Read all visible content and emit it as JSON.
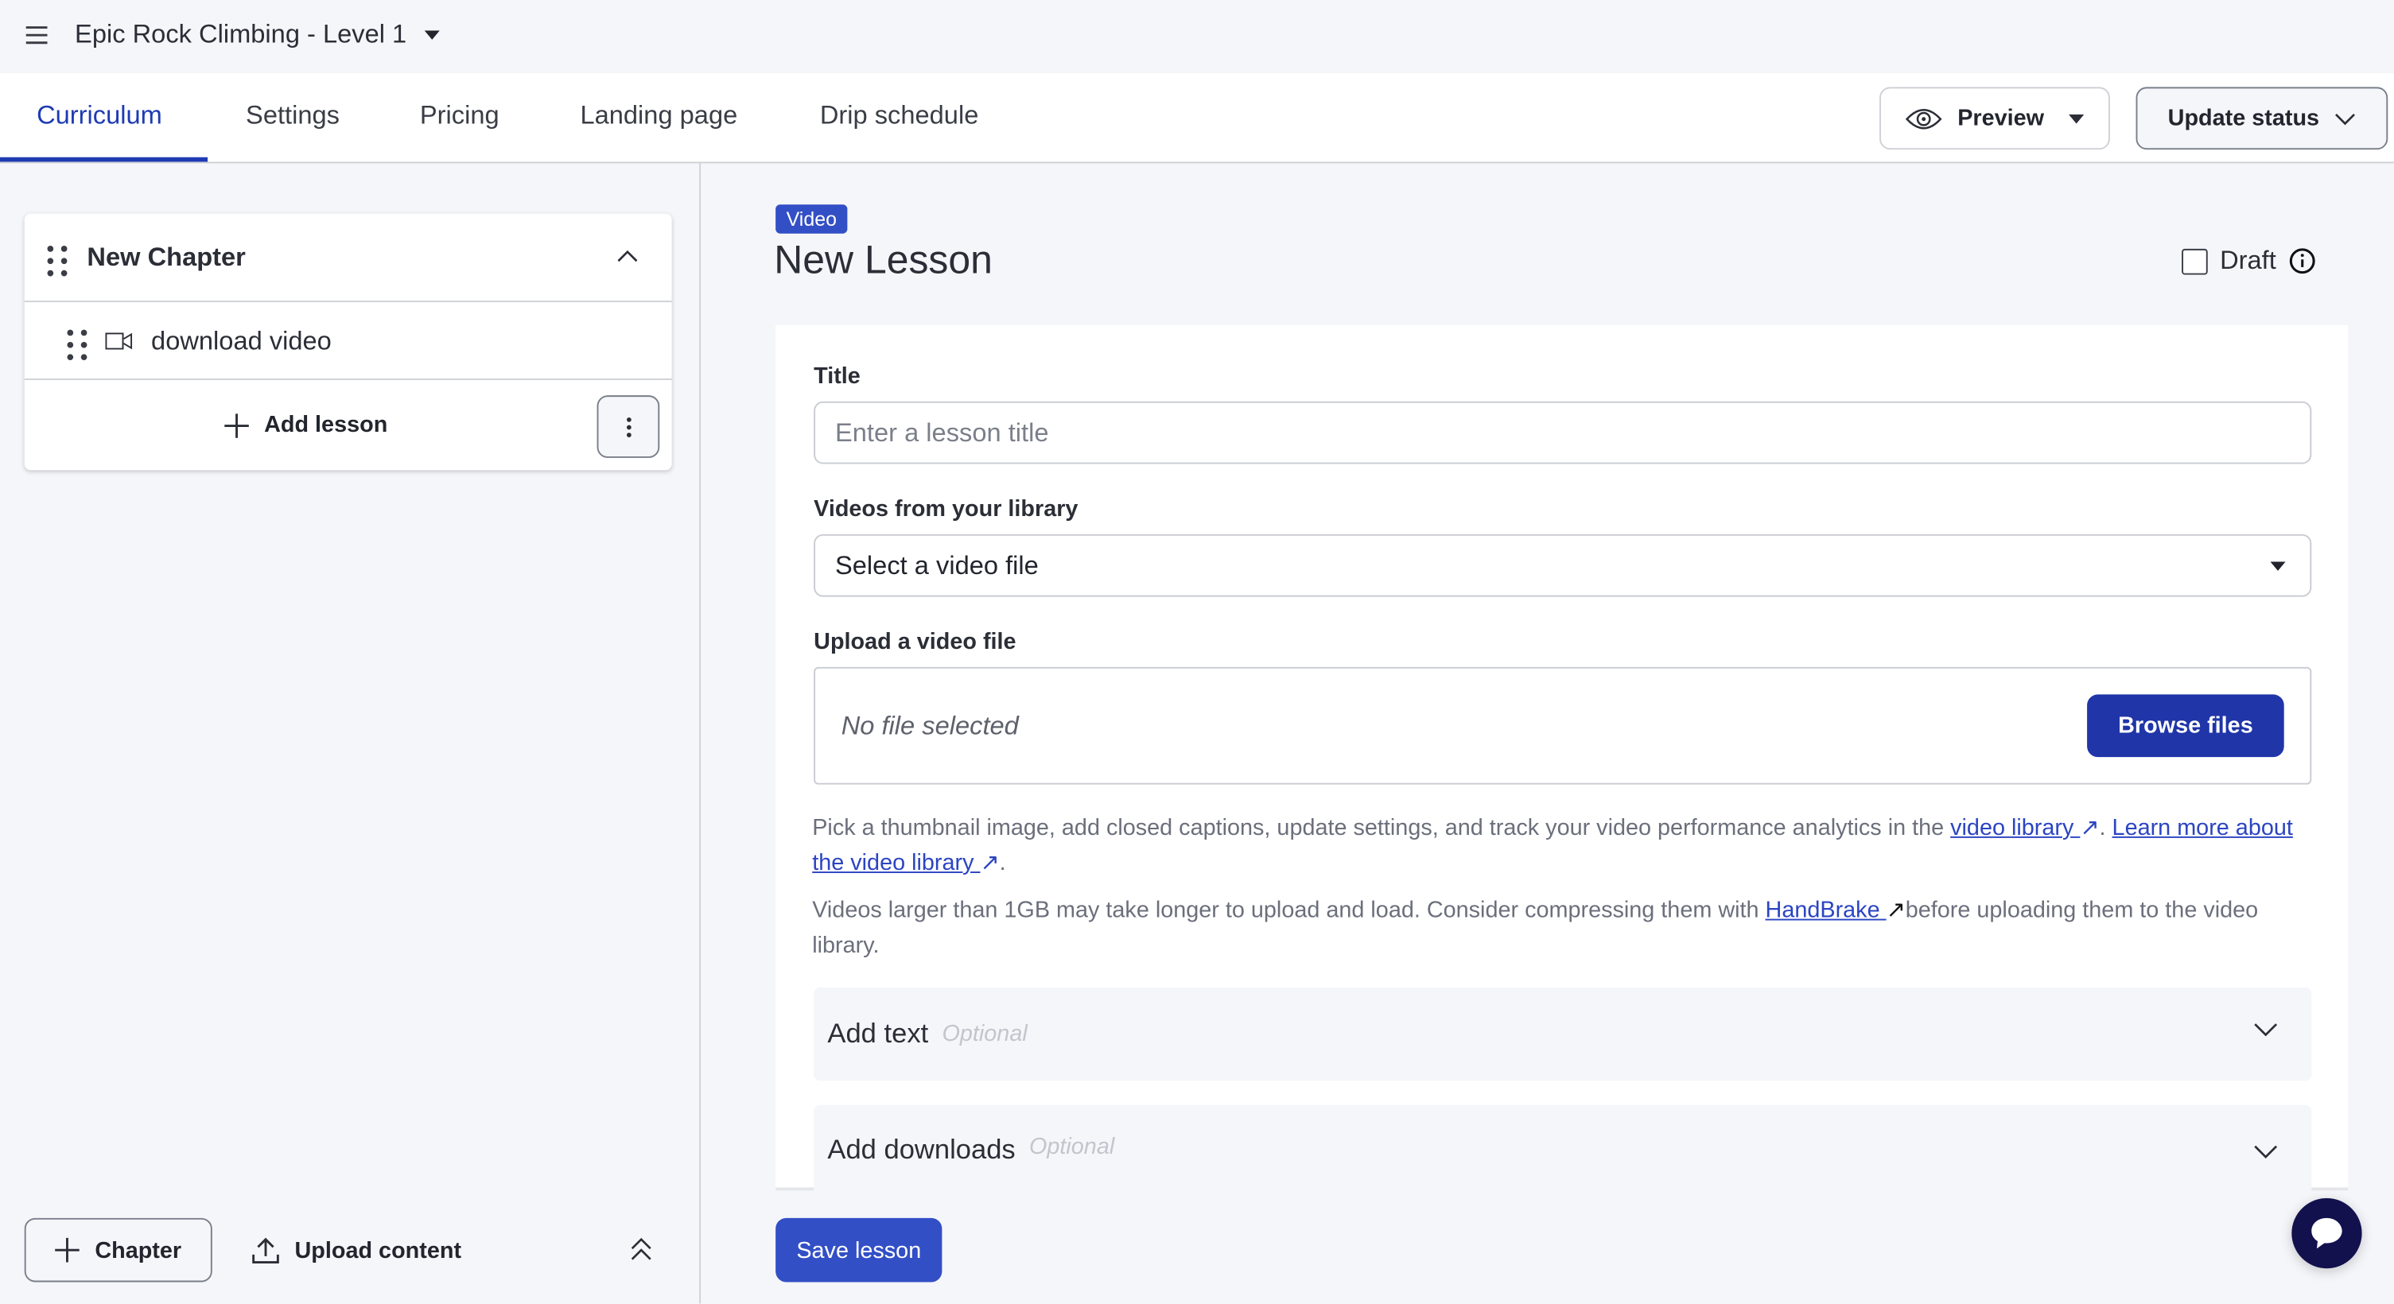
{
  "header": {
    "course_title": "Epic Rock Climbing - Level 1"
  },
  "tabs": [
    {
      "label": "Curriculum",
      "active": true
    },
    {
      "label": "Settings"
    },
    {
      "label": "Pricing"
    },
    {
      "label": "Landing page"
    },
    {
      "label": "Drip schedule"
    }
  ],
  "toolbar": {
    "preview_label": "Preview",
    "update_status_label": "Update status"
  },
  "sidebar": {
    "chapter_title": "New Chapter",
    "lessons": [
      {
        "title": "download video",
        "icon": "video-camera-icon"
      }
    ],
    "add_lesson_label": "Add lesson",
    "add_chapter_label": "Chapter",
    "upload_content_label": "Upload content"
  },
  "lesson": {
    "type_badge": "Video",
    "title": "New Lesson",
    "draft_label": "Draft",
    "draft_checked": false,
    "title_label": "Title",
    "title_placeholder": "Enter a lesson title",
    "library_label": "Videos from your library",
    "library_selected": "Select a video file",
    "upload_label": "Upload a video file",
    "no_file": "No file selected",
    "browse_label": "Browse files",
    "help1_pre": "Pick a thumbnail image, add closed captions, update settings, and track your video performance analytics in the ",
    "help1_link1": "video library ",
    "help1_mid": ". ",
    "help1_link2": "Learn more about the video library ",
    "help1_post": ".",
    "help2_pre": "Videos larger than 1GB may take longer to upload and load. Consider compressing them with ",
    "help2_link": "HandBrake ",
    "help2_post": "before uploading them to the video library.",
    "add_text_label": "Add text",
    "add_downloads_label": "Add downloads",
    "optional_label": "Optional",
    "save_label": "Save lesson"
  },
  "colors": {
    "accent": "#1f3bb3",
    "badge": "#334fc6",
    "browse": "#1f35a8",
    "chat": "#12104d"
  }
}
